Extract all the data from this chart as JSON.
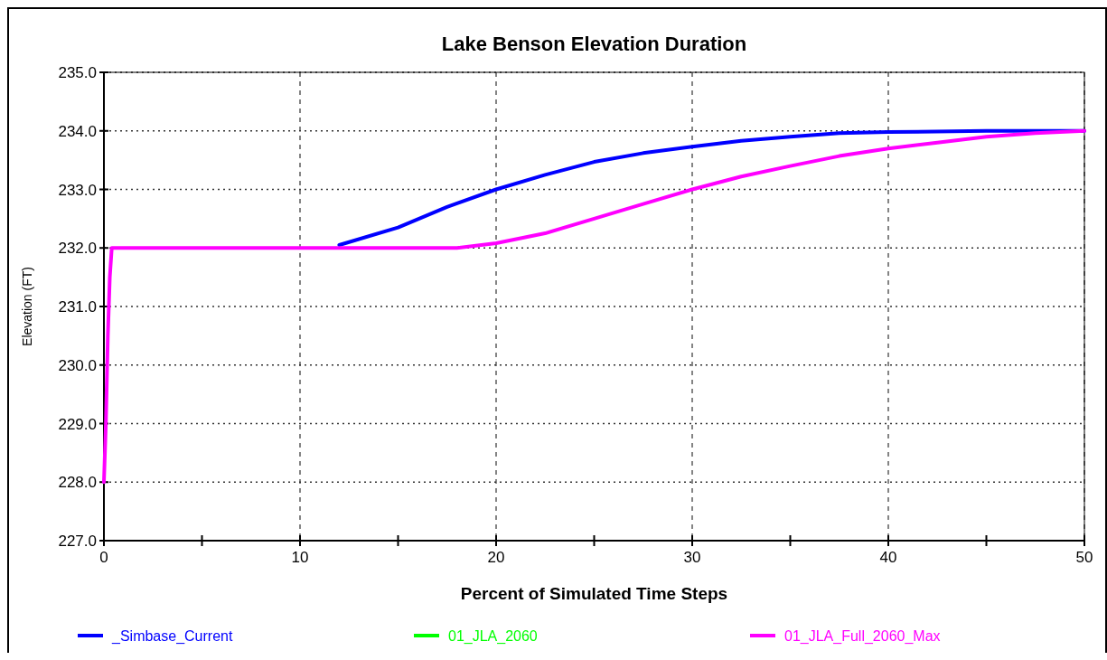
{
  "chart_data": {
    "type": "line",
    "title": "Lake Benson Elevation Duration",
    "xlabel": "Percent of Simulated Time Steps",
    "ylabel": "Elevation (FT)",
    "xlim": [
      0,
      50
    ],
    "xticks": [
      0,
      {
        "value": 5,
        "label": null
      },
      10,
      {
        "value": 15,
        "label": null
      },
      20,
      {
        "value": 25,
        "label": null
      },
      30,
      {
        "value": 35,
        "label": null
      },
      40,
      {
        "value": 45,
        "label": null
      },
      50
    ],
    "ylim": [
      227,
      235
    ],
    "yticks": [
      {
        "value": 227,
        "label": "227.0"
      },
      {
        "value": 228,
        "label": "228.0"
      },
      {
        "value": 229,
        "label": "229.0"
      },
      {
        "value": 230,
        "label": "230.0"
      },
      {
        "value": 231,
        "label": "231.0"
      },
      {
        "value": 232,
        "label": "232.0"
      },
      {
        "value": 233,
        "label": "233.0"
      },
      {
        "value": 234,
        "label": "234.0"
      },
      {
        "value": 235,
        "label": "235.0"
      }
    ],
    "grid": true,
    "legend": "bottom",
    "line_style": "solid",
    "marker": "none",
    "series": [
      {
        "name": "_Simbase_Current",
        "color": "#0000ff",
        "x": [
          12,
          15,
          17.5,
          20,
          22.5,
          25,
          27.5,
          30,
          32.5,
          35,
          37.5,
          40,
          45,
          50
        ],
        "values": [
          232.05,
          232.35,
          232.7,
          233.0,
          233.25,
          233.47,
          233.62,
          233.73,
          233.83,
          233.9,
          233.96,
          233.98,
          234.0,
          234.0
        ]
      },
      {
        "name": "01_JLA_2060",
        "color": "#00ff00"
      },
      {
        "name": "01_JLA_Full_2060_Max",
        "color": "#ff00ff",
        "x": [
          0,
          0.1,
          0.2,
          0.3,
          0.4,
          18,
          20,
          22.5,
          25,
          27.5,
          30,
          32.5,
          35,
          37.5,
          40,
          42.5,
          45,
          47.5,
          50
        ],
        "values": [
          228,
          229,
          230.5,
          231.5,
          232,
          232,
          232.08,
          232.25,
          232.5,
          232.75,
          233.0,
          233.22,
          233.4,
          233.57,
          233.7,
          233.8,
          233.9,
          233.96,
          234
        ]
      }
    ]
  }
}
